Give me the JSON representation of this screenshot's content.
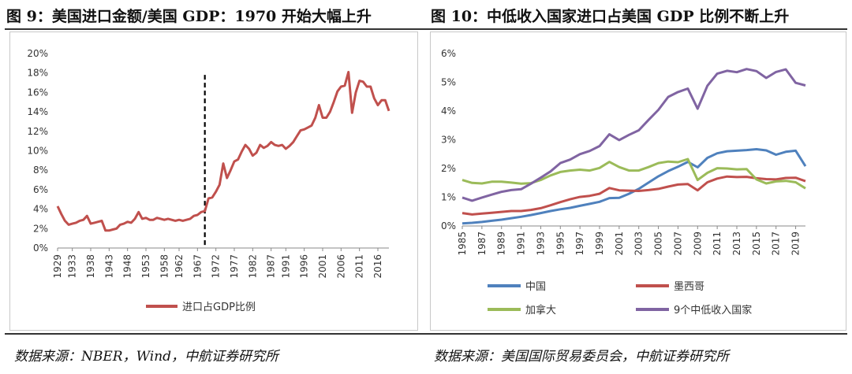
{
  "fig9": {
    "title": "图 9：美国进口金额/美国 GDP：1970 开始大幅上升",
    "source": "数据来源：NBER，Wind，中航证券研究所"
  },
  "fig10": {
    "title": "图 10：中低收入国家进口占美国 GDP 比例不断上升",
    "source": "数据来源：美国国际贸易委员会，中航证券研究所"
  },
  "chart_data": [
    {
      "type": "line",
      "title": "美国进口金额/美国 GDP：1970 开始大幅上升",
      "xlabel": "",
      "ylabel": "",
      "ylim": [
        0,
        20
      ],
      "xlim": [
        1929,
        2019
      ],
      "y_ticks": [
        "0%",
        "2%",
        "4%",
        "6%",
        "8%",
        "10%",
        "12%",
        "14%",
        "16%",
        "18%",
        "20%"
      ],
      "x_ticks": [
        "1929",
        "1933",
        "1938",
        "1943",
        "1948",
        "1953",
        "1958",
        "1962",
        "1967",
        "1972",
        "1977",
        "1982",
        "1987",
        "1991",
        "1996",
        "2001",
        "2006",
        "2011",
        "2016"
      ],
      "vline": {
        "x": 1969,
        "style": "dashed"
      },
      "legend": "bottom-center",
      "series": [
        {
          "name": "进口占GDP比例",
          "color": "#c0504d",
          "x": [
            1929,
            1930,
            1931,
            1932,
            1933,
            1934,
            1935,
            1936,
            1937,
            1938,
            1939,
            1940,
            1941,
            1942,
            1943,
            1944,
            1945,
            1946,
            1947,
            1948,
            1949,
            1950,
            1951,
            1952,
            1953,
            1954,
            1955,
            1956,
            1957,
            1958,
            1959,
            1960,
            1961,
            1962,
            1963,
            1964,
            1965,
            1966,
            1967,
            1968,
            1969,
            1970,
            1971,
            1972,
            1973,
            1974,
            1975,
            1976,
            1977,
            1978,
            1979,
            1980,
            1981,
            1982,
            1983,
            1984,
            1985,
            1986,
            1987,
            1988,
            1989,
            1990,
            1991,
            1992,
            1993,
            1994,
            1995,
            1996,
            1997,
            1998,
            1999,
            2000,
            2001,
            2002,
            2003,
            2004,
            2005,
            2006,
            2007,
            2008,
            2009,
            2010,
            2011,
            2012,
            2013,
            2014,
            2015,
            2016,
            2017,
            2018,
            2019
          ],
          "values": [
            4.3,
            3.5,
            2.8,
            2.4,
            2.5,
            2.6,
            2.8,
            2.9,
            3.3,
            2.5,
            2.6,
            2.7,
            2.8,
            1.8,
            1.8,
            1.9,
            2.0,
            2.4,
            2.5,
            2.7,
            2.6,
            3.0,
            3.7,
            3.0,
            3.1,
            2.9,
            2.9,
            3.1,
            3.0,
            2.9,
            3.0,
            2.9,
            2.8,
            2.9,
            2.8,
            2.9,
            3.0,
            3.3,
            3.4,
            3.7,
            3.8,
            5.1,
            5.2,
            5.8,
            6.5,
            8.7,
            7.2,
            8.0,
            8.9,
            9.1,
            9.9,
            10.6,
            10.2,
            9.5,
            9.8,
            10.6,
            10.3,
            10.5,
            10.9,
            10.6,
            10.5,
            10.6,
            10.2,
            10.5,
            10.9,
            11.5,
            12.1,
            12.2,
            12.4,
            12.6,
            13.4,
            14.7,
            13.4,
            13.4,
            14.0,
            15.0,
            16.1,
            16.6,
            16.7,
            18.1,
            13.9,
            16.0,
            17.2,
            17.1,
            16.6,
            16.6,
            15.4,
            14.7,
            15.2,
            15.2,
            14.1
          ]
        }
      ]
    },
    {
      "type": "line",
      "title": "中低收入国家进口占美国 GDP 比例不断上升",
      "xlabel": "",
      "ylabel": "",
      "ylim": [
        0,
        6
      ],
      "xlim": [
        1985,
        2020
      ],
      "y_ticks": [
        "0%",
        "1%",
        "2%",
        "3%",
        "4%",
        "5%",
        "6%"
      ],
      "x_ticks": [
        "1985",
        "1987",
        "1989",
        "1991",
        "1993",
        "1995",
        "1997",
        "1999",
        "2001",
        "2003",
        "2005",
        "2007",
        "2009",
        "2011",
        "2013",
        "2015",
        "2017",
        "2019"
      ],
      "x": [
        1985,
        1986,
        1987,
        1988,
        1989,
        1990,
        1991,
        1992,
        1993,
        1994,
        1995,
        1996,
        1997,
        1998,
        1999,
        2000,
        2001,
        2002,
        2003,
        2004,
        2005,
        2006,
        2007,
        2008,
        2009,
        2010,
        2011,
        2012,
        2013,
        2014,
        2015,
        2016,
        2017,
        2018,
        2019,
        2020
      ],
      "legend": "bottom",
      "series": [
        {
          "name": "中国",
          "color": "#4f81bd",
          "values": [
            0.09,
            0.11,
            0.14,
            0.18,
            0.22,
            0.27,
            0.32,
            0.38,
            0.45,
            0.52,
            0.58,
            0.63,
            0.7,
            0.77,
            0.84,
            0.97,
            0.98,
            1.12,
            1.29,
            1.51,
            1.73,
            1.91,
            2.06,
            2.23,
            2.04,
            2.37,
            2.53,
            2.6,
            2.62,
            2.64,
            2.67,
            2.63,
            2.48,
            2.58,
            2.62,
            2.08
          ]
        },
        {
          "name": "墨西哥",
          "color": "#c0504d",
          "values": [
            0.45,
            0.4,
            0.43,
            0.46,
            0.49,
            0.52,
            0.52,
            0.56,
            0.62,
            0.72,
            0.83,
            0.93,
            1.01,
            1.05,
            1.12,
            1.32,
            1.24,
            1.23,
            1.22,
            1.25,
            1.29,
            1.37,
            1.44,
            1.46,
            1.24,
            1.52,
            1.65,
            1.72,
            1.7,
            1.71,
            1.66,
            1.63,
            1.62,
            1.67,
            1.68,
            1.56
          ]
        },
        {
          "name": "加拿大",
          "color": "#9bbb59",
          "values": [
            1.6,
            1.5,
            1.48,
            1.54,
            1.54,
            1.51,
            1.47,
            1.49,
            1.6,
            1.76,
            1.88,
            1.93,
            1.96,
            1.93,
            2.02,
            2.23,
            2.05,
            1.93,
            1.93,
            2.05,
            2.19,
            2.24,
            2.22,
            2.33,
            1.6,
            1.85,
            2.01,
            2.0,
            1.97,
            1.98,
            1.62,
            1.48,
            1.55,
            1.57,
            1.52,
            1.31
          ]
        },
        {
          "name": "9个中低收入国家",
          "color": "#8064a2",
          "values": [
            0.99,
            0.88,
            0.99,
            1.09,
            1.19,
            1.25,
            1.28,
            1.47,
            1.68,
            1.9,
            2.19,
            2.31,
            2.5,
            2.61,
            2.78,
            3.19,
            2.99,
            3.17,
            3.33,
            3.69,
            4.04,
            4.49,
            4.66,
            4.78,
            4.08,
            4.88,
            5.3,
            5.4,
            5.35,
            5.46,
            5.39,
            5.15,
            5.36,
            5.45,
            4.98,
            4.89
          ]
        }
      ]
    }
  ]
}
